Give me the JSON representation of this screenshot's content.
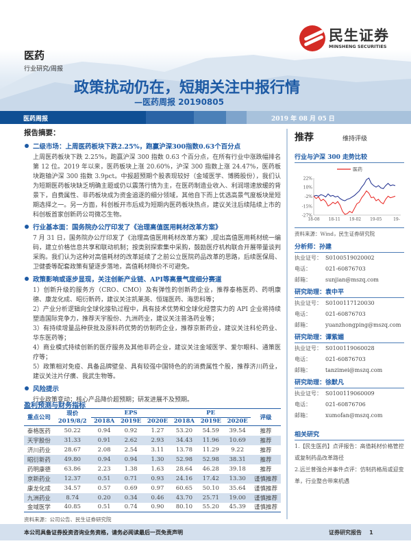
{
  "header": {
    "brand_cn": "民生证券",
    "brand_en": "MINSHENG SECURITIES",
    "sector": "医药",
    "category": "行业研究/周报",
    "title": "政策扰动仍在，短期关注中报行情",
    "subtitle": "—医药周报 20190805",
    "band_left": "医药周报",
    "band_date": "2019 年 08 月 05 日"
  },
  "colors": {
    "accent": "#1d5aa4",
    "brand_red": "#d42b25",
    "band": [
      "#0f4f94",
      "#2a64a6",
      "#4b80b8",
      "#7ea4cc",
      "#a8c2dc"
    ]
  },
  "summary": {
    "heading": "报告摘要：",
    "bullets": [
      {
        "title": "二级市场：上周医药板块下跌2.25%，跑赢沪深300指数0.63个百分点",
        "paragraphs": [
          "上周医药板块下跌 2.25%，跑赢沪深 300 指数 0.63 个百分点，在所有行业中涨跌幅排名第 12 位。2019 年以来，医药板块上涨 20.60%，沪深 300 指数上涨 24.47%，医药板块跑输沪深 300 指数 3.9pct。中报超预期个股表现较好（金域医学、博腾股份），我们认为短期医药板块缺乏明确主题或仍以震荡行情为主，在医药制造业收入、利润增速放缓的背景下，自费属性、非药板块成为资金追逐的细分领域，其他自下而上优选高景气度板块是短期选择之一。另一方面，科创板开市后成为短期内医药板块热点，建议关注后续陆续上市的科创板首家创新药公司微芯生物。"
        ]
      },
      {
        "title": "行业基本面：国务院办公厅印发了《治理高值医用耗材改革方案》",
        "paragraphs": [
          "7 月 31 日，国务院办公厅印发了《治理高值医用耗材改革方案》,提出高值医用耗材统一编码，建立价格信息共享和联动机制；按类别探索集中采购，鼓励医疗机构联合开展带量谈判采购。我们认为这种对高值耗材的改革延续了之前公立医院药品改革的思路，后续医保局、卫健委等配套政策有望逐步落地，高值耗材降价不可避免。"
        ]
      },
      {
        "title": "政策影响或逐步显现，关注创新产业链、API等高景气度细分赛道",
        "paragraphs": [
          "1）创新升级的服务方（CRO、CMO）及有弹性的创新药企业，推荐泰格医药、药明康德、康龙化成、昭衍新药，建议关注凯莱英、恒瑞医药、海思科等；",
          "2）产业分析逻辑向全球化接轨过程中，具有技术优势和全球化经营实力的 API 企业将持续塑造国际竞争力，推荐天宇股份、九洲药业，建议关注普洛药业等；",
          "3）有持续增量品种获批及原料药优势的仿制药企业，推荐京新药业，建议关注科伦药业、华东医药等；",
          "4）商业模式持续创新的医疗服务及其他非药企业，建议关注金域医学、爱尔眼科、通策医疗等；",
          "5）政策相对免疫、具备品牌壁垒、具有较强中国特色的的消费属性个股，推荐济川药业，建议关注片仔癀、我武生物等。"
        ]
      },
      {
        "title": "风险提示",
        "paragraphs": [
          "行业政策变动；核心产品降价超预期；研发进展不及预期。"
        ]
      }
    ]
  },
  "table": {
    "title": "盈利预测与财务指标",
    "col_company": "重点公司",
    "col_price": "现价",
    "col_price_date": "2019/8/2",
    "group_eps": "EPS",
    "group_pe": "PE",
    "col_rating": "评级",
    "years": [
      "2018A",
      "2019E",
      "2020E",
      "2018A",
      "2019E",
      "2020E"
    ],
    "rows": [
      [
        "泰格医药",
        "50.22",
        "0.94",
        "0.92",
        "1.27",
        "53.20",
        "54.59",
        "39.54",
        "推荐"
      ],
      [
        "天宇股份",
        "31.33",
        "0.91",
        "2.62",
        "2.93",
        "34.43",
        "11.96",
        "10.69",
        "推荐"
      ],
      [
        "济川药业",
        "28.67",
        "2.08",
        "2.54",
        "3.11",
        "13.78",
        "11.29",
        "9.22",
        "推荐"
      ],
      [
        "昭衍新药",
        "49.80",
        "0.94",
        "0.94",
        "1.30",
        "52.98",
        "52.98",
        "38.31",
        "推荐"
      ],
      [
        "药明康德",
        "63.86",
        "2.23",
        "1.38",
        "1.63",
        "28.64",
        "46.28",
        "39.18",
        "推荐"
      ],
      [
        "京新药业",
        "12.37",
        "0.51",
        "0.71",
        "0.93",
        "24.16",
        "17.42",
        "13.30",
        "谨慎推荐"
      ],
      [
        "康龙化成",
        "34.57",
        "0.57",
        "0.69",
        "0.97",
        "60.65",
        "50.10",
        "35.64",
        "谨慎推荐"
      ],
      [
        "九洲药业",
        "8.74",
        "0.20",
        "0.34",
        "0.46",
        "43.70",
        "25.71",
        "19.00",
        "谨慎推荐"
      ],
      [
        "金域医学",
        "40.85",
        "0.51",
        "0.74",
        "0.90",
        "80.10",
        "55.20",
        "45.39",
        "谨慎推荐"
      ]
    ],
    "source": "资料来源：公司公告、民生证券研究院"
  },
  "sidebar": {
    "rating": "推荐",
    "rating_note": "维持评级",
    "chart_title": "行业与沪深 300 走势比较",
    "chart_source": "资料来源：Wind，民生证券研究院",
    "analysts": [
      {
        "role": "分析师：孙建",
        "license": "S0100519020002",
        "phone": "021-60876703",
        "email": "sunjian@mszq.com"
      },
      {
        "role": "研究助理：袁中平",
        "license": "S0100117120030",
        "phone": "021-60876703",
        "email": "yuanzhongping@mszq.com"
      },
      {
        "role": "研究助理：谭紫媚",
        "license": "S0100119060028",
        "phone": "021-60876703",
        "email": "tanzimei@mszq.com"
      },
      {
        "role": "研究助理：徐默凡",
        "license": "S0100119060009",
        "phone": "021-60876706",
        "email": "xumofan@mszq.com"
      }
    ],
    "labels": {
      "license": "执业证号：",
      "phone": "电话：",
      "email": "邮箱："
    },
    "related_title": "相关研究",
    "related": [
      "1.【民生医药】点评报告：高值耗材价格管控或复制药品改革路径",
      "2.远兰普强合并事件点评：仿制药格局或迎变革，行业整合带来机遇"
    ]
  },
  "chart_data": {
    "type": "line",
    "legend": [
      "医药"
    ],
    "legend_position": "top",
    "y_ticks": [
      "22%",
      "10%",
      "-2%",
      "-15%",
      "-27%"
    ],
    "ylim": [
      -27,
      22
    ],
    "x_ticks": [
      "18-08",
      "18-11",
      "19-02",
      "19-05",
      "19-"
    ],
    "series": [
      {
        "name": "医药",
        "color": "#e8201c",
        "values": [
          -2,
          -5,
          -3,
          -8,
          -6,
          -9,
          -15,
          -13,
          -10,
          -12,
          -9,
          -14,
          -22,
          -26,
          -25,
          -22,
          -24,
          -18,
          -12,
          -10,
          -4,
          0,
          5,
          2,
          -4,
          -3,
          -8,
          -6,
          -10,
          -12,
          -6,
          -2,
          -4,
          -3,
          -2
        ]
      },
      {
        "name": "",
        "color": "#1a2a8c",
        "values": [
          -2,
          -1,
          -2,
          0,
          -1,
          -3,
          1,
          -2,
          -1,
          -3,
          -2,
          -5,
          -7,
          -8,
          -6,
          -5,
          -3,
          -1,
          2,
          5,
          10,
          14,
          20,
          22,
          15,
          12,
          10,
          12,
          9,
          8,
          12,
          15,
          12,
          13,
          12
        ]
      }
    ]
  },
  "footer": {
    "disclaimer": "本公司具备证券投资咨询业务资格，请务必阅读最后一页免责声明",
    "report_type": "证券研究报告",
    "page": "1"
  }
}
